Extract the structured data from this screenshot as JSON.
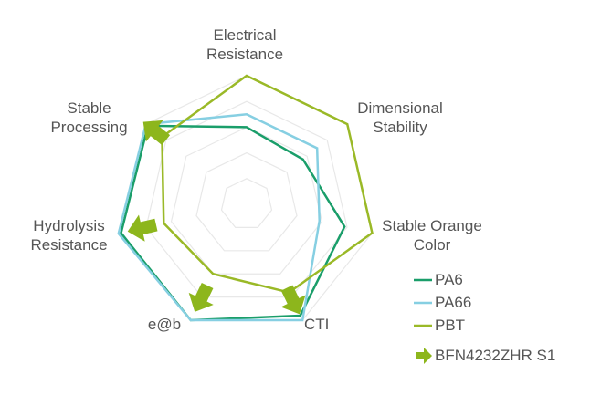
{
  "chart_data": {
    "type": "radar",
    "categories": [
      "Electrical Resistance",
      "Dimensional Stability",
      "Stable Orange Color",
      "CTI",
      "e@b",
      "Hydrolysis Resistance",
      "Stable Processing"
    ],
    "rlim": [
      0,
      5
    ],
    "rticks": [
      1,
      2,
      3,
      4,
      5
    ],
    "grid": true,
    "series": [
      {
        "name": "PA6",
        "color": "#1a9e6a",
        "values": [
          3.0,
          2.8,
          3.9,
          4.8,
          5.0,
          5.0,
          4.9
        ]
      },
      {
        "name": "PA66",
        "color": "#86cfe2",
        "values": [
          3.5,
          3.5,
          2.9,
          5.0,
          5.0,
          5.1,
          5.0
        ]
      },
      {
        "name": "PBT",
        "color": "#9ab927",
        "values": [
          5.0,
          5.0,
          5.0,
          3.8,
          3.0,
          3.3,
          4.2
        ]
      },
      {
        "name": "BFN4232ZHR S1",
        "color": "#8db61c",
        "marker": "arrow",
        "values": [
          null,
          null,
          null,
          4.1,
          4.0,
          4.1,
          4.5
        ]
      }
    ]
  }
}
